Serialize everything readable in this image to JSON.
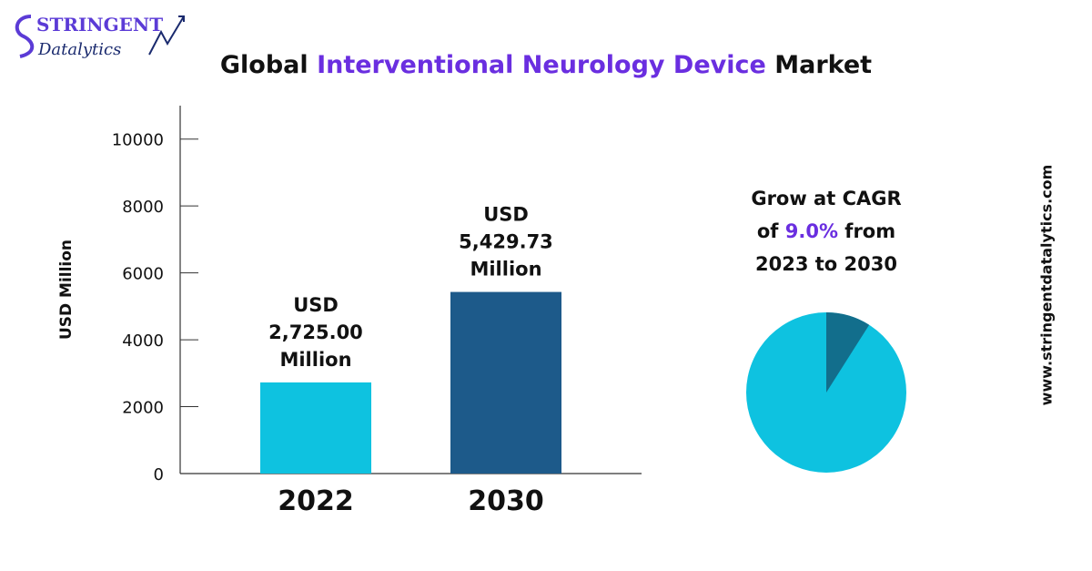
{
  "brand": {
    "name_top": "STRINGENT",
    "name_bottom": "Datalytics",
    "website": "www.stringentdatalytics.com"
  },
  "title": {
    "prefix": "Global ",
    "highlight": "Interventional Neurology Device",
    "suffix": " Market"
  },
  "colors": {
    "highlight": "#6a2ee0",
    "bar_2022": "#0ec2e0",
    "bar_2030": "#1d5a8a",
    "pie_main": "#0ec2e0",
    "pie_slice": "#126e8c"
  },
  "chart_data": {
    "type": "bar",
    "categories": [
      "2022",
      "2030"
    ],
    "values": [
      2725.0,
      5429.73
    ],
    "data_labels": [
      [
        "USD",
        "2,725.00",
        "Million"
      ],
      [
        "USD",
        "5,429.73",
        "Million"
      ]
    ],
    "ylabel": "USD Million",
    "ylim": [
      0,
      11000
    ],
    "yticks": [
      0,
      2000,
      4000,
      6000,
      8000,
      10000
    ],
    "grid": false
  },
  "cagr": {
    "line1": "Grow at CAGR",
    "line2_prefix": "of ",
    "rate": "9.0%",
    "line2_suffix": " from",
    "line3": "2023 to 2030",
    "pie_fraction": 0.09
  }
}
